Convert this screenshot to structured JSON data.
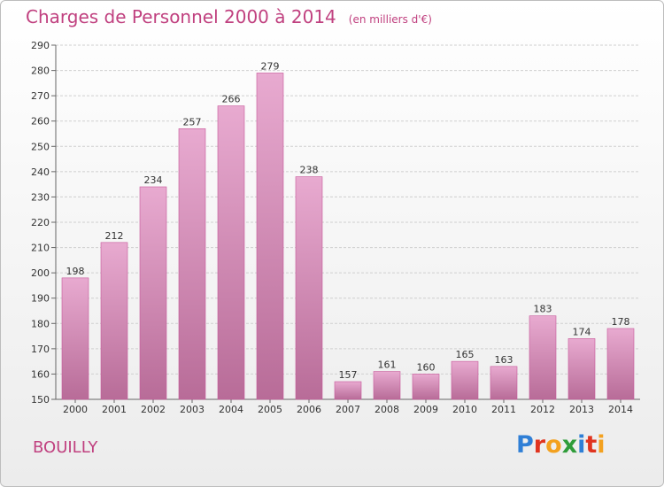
{
  "header": {
    "title": "Charges de Personnel 2000 à 2014",
    "subtitle": "(en milliers d'€)"
  },
  "footer": {
    "commune": "BOUILLY",
    "logo_text": "Proxiti"
  },
  "colors": {
    "title": "#c0407f",
    "bar_top": "#e8aad0",
    "bar_bottom": "#b86c98",
    "bar_stroke": "#c7589a",
    "grid": "#cfcfcf"
  },
  "chart_data": {
    "type": "bar",
    "title": "Charges de Personnel 2000 à 2014",
    "subtitle": "(en milliers d'€)",
    "xlabel": "",
    "ylabel": "",
    "categories": [
      "2000",
      "2001",
      "2002",
      "2003",
      "2004",
      "2005",
      "2006",
      "2007",
      "2008",
      "2009",
      "2010",
      "2011",
      "2012",
      "2013",
      "2014"
    ],
    "values": [
      198,
      212,
      234,
      257,
      266,
      279,
      238,
      157,
      161,
      160,
      165,
      163,
      183,
      174,
      178
    ],
    "ylim": [
      150,
      290
    ],
    "yticks": [
      150,
      160,
      170,
      180,
      190,
      200,
      210,
      220,
      230,
      240,
      250,
      260,
      270,
      280,
      290
    ],
    "grid": true,
    "data_labels": true
  }
}
